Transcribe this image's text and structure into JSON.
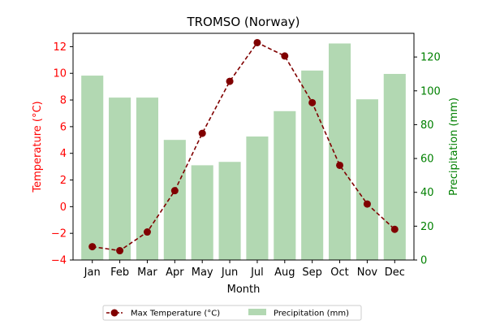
{
  "chart_data": {
    "type": "bar",
    "title": "TROMSO (Norway)",
    "xlabel": "Month",
    "categories": [
      "Jan",
      "Feb",
      "Mar",
      "Apr",
      "May",
      "Jun",
      "Jul",
      "Aug",
      "Sep",
      "Oct",
      "Nov",
      "Dec"
    ],
    "y_left": {
      "label": "Temperature (°C)",
      "range": [
        -4,
        13
      ],
      "ticks": [
        -4,
        -2,
        0,
        2,
        4,
        6,
        8,
        10,
        12
      ],
      "tick_labels": [
        "−4",
        "−2",
        "0",
        "2",
        "4",
        "6",
        "8",
        "10",
        "12"
      ],
      "color": "#ff0000"
    },
    "y_right": {
      "label": "Precipitation (mm)",
      "range": [
        0,
        134
      ],
      "ticks": [
        0,
        20,
        40,
        60,
        80,
        100,
        120
      ],
      "tick_labels": [
        "0",
        "20",
        "40",
        "60",
        "80",
        "100",
        "120"
      ],
      "color": "#008000"
    },
    "series": [
      {
        "name": "Max Temperature (°C)",
        "type": "line",
        "axis": "left",
        "style": "dashed",
        "marker": "circle",
        "color": "#800000",
        "values": [
          -3.0,
          -3.3,
          -1.9,
          1.2,
          5.5,
          9.4,
          12.3,
          11.3,
          7.8,
          3.1,
          0.2,
          -1.7
        ]
      },
      {
        "name": "Precipitation (mm)",
        "type": "bar",
        "axis": "right",
        "color": "#b2d8b2",
        "values": [
          109,
          96,
          96,
          71,
          56,
          58,
          73,
          88,
          112,
          128,
          95,
          110
        ]
      }
    ],
    "legend": {
      "placement": "bottom-center",
      "columns": 2
    },
    "grid": false
  }
}
